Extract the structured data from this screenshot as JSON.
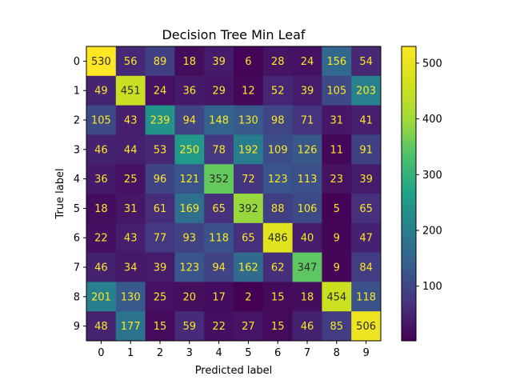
{
  "chart_data": {
    "type": "heatmap",
    "title": "Decision Tree Min Leaf",
    "xlabel": "Predicted label",
    "ylabel": "True label",
    "x_categories": [
      "0",
      "1",
      "2",
      "3",
      "4",
      "5",
      "6",
      "7",
      "8",
      "9"
    ],
    "y_categories": [
      "0",
      "1",
      "2",
      "3",
      "4",
      "5",
      "6",
      "7",
      "8",
      "9"
    ],
    "values": [
      [
        530,
        56,
        89,
        18,
        39,
        6,
        28,
        24,
        156,
        54
      ],
      [
        49,
        451,
        24,
        36,
        29,
        12,
        52,
        39,
        105,
        203
      ],
      [
        105,
        43,
        239,
        94,
        148,
        130,
        98,
        71,
        31,
        41
      ],
      [
        46,
        44,
        53,
        250,
        78,
        192,
        109,
        126,
        11,
        91
      ],
      [
        36,
        25,
        96,
        121,
        352,
        72,
        123,
        113,
        23,
        39
      ],
      [
        18,
        31,
        61,
        169,
        65,
        392,
        88,
        106,
        5,
        65
      ],
      [
        22,
        43,
        77,
        93,
        118,
        65,
        486,
        40,
        9,
        47
      ],
      [
        46,
        34,
        39,
        123,
        94,
        162,
        62,
        347,
        9,
        84
      ],
      [
        201,
        130,
        25,
        20,
        17,
        2,
        15,
        18,
        454,
        118
      ],
      [
        48,
        177,
        15,
        59,
        22,
        27,
        15,
        46,
        85,
        506
      ]
    ],
    "colormap": "viridis",
    "vmin": 2,
    "vmax": 530,
    "colorbar_ticks": [
      100,
      200,
      300,
      400,
      500
    ],
    "grid": false,
    "legend": "colorbar-right"
  }
}
